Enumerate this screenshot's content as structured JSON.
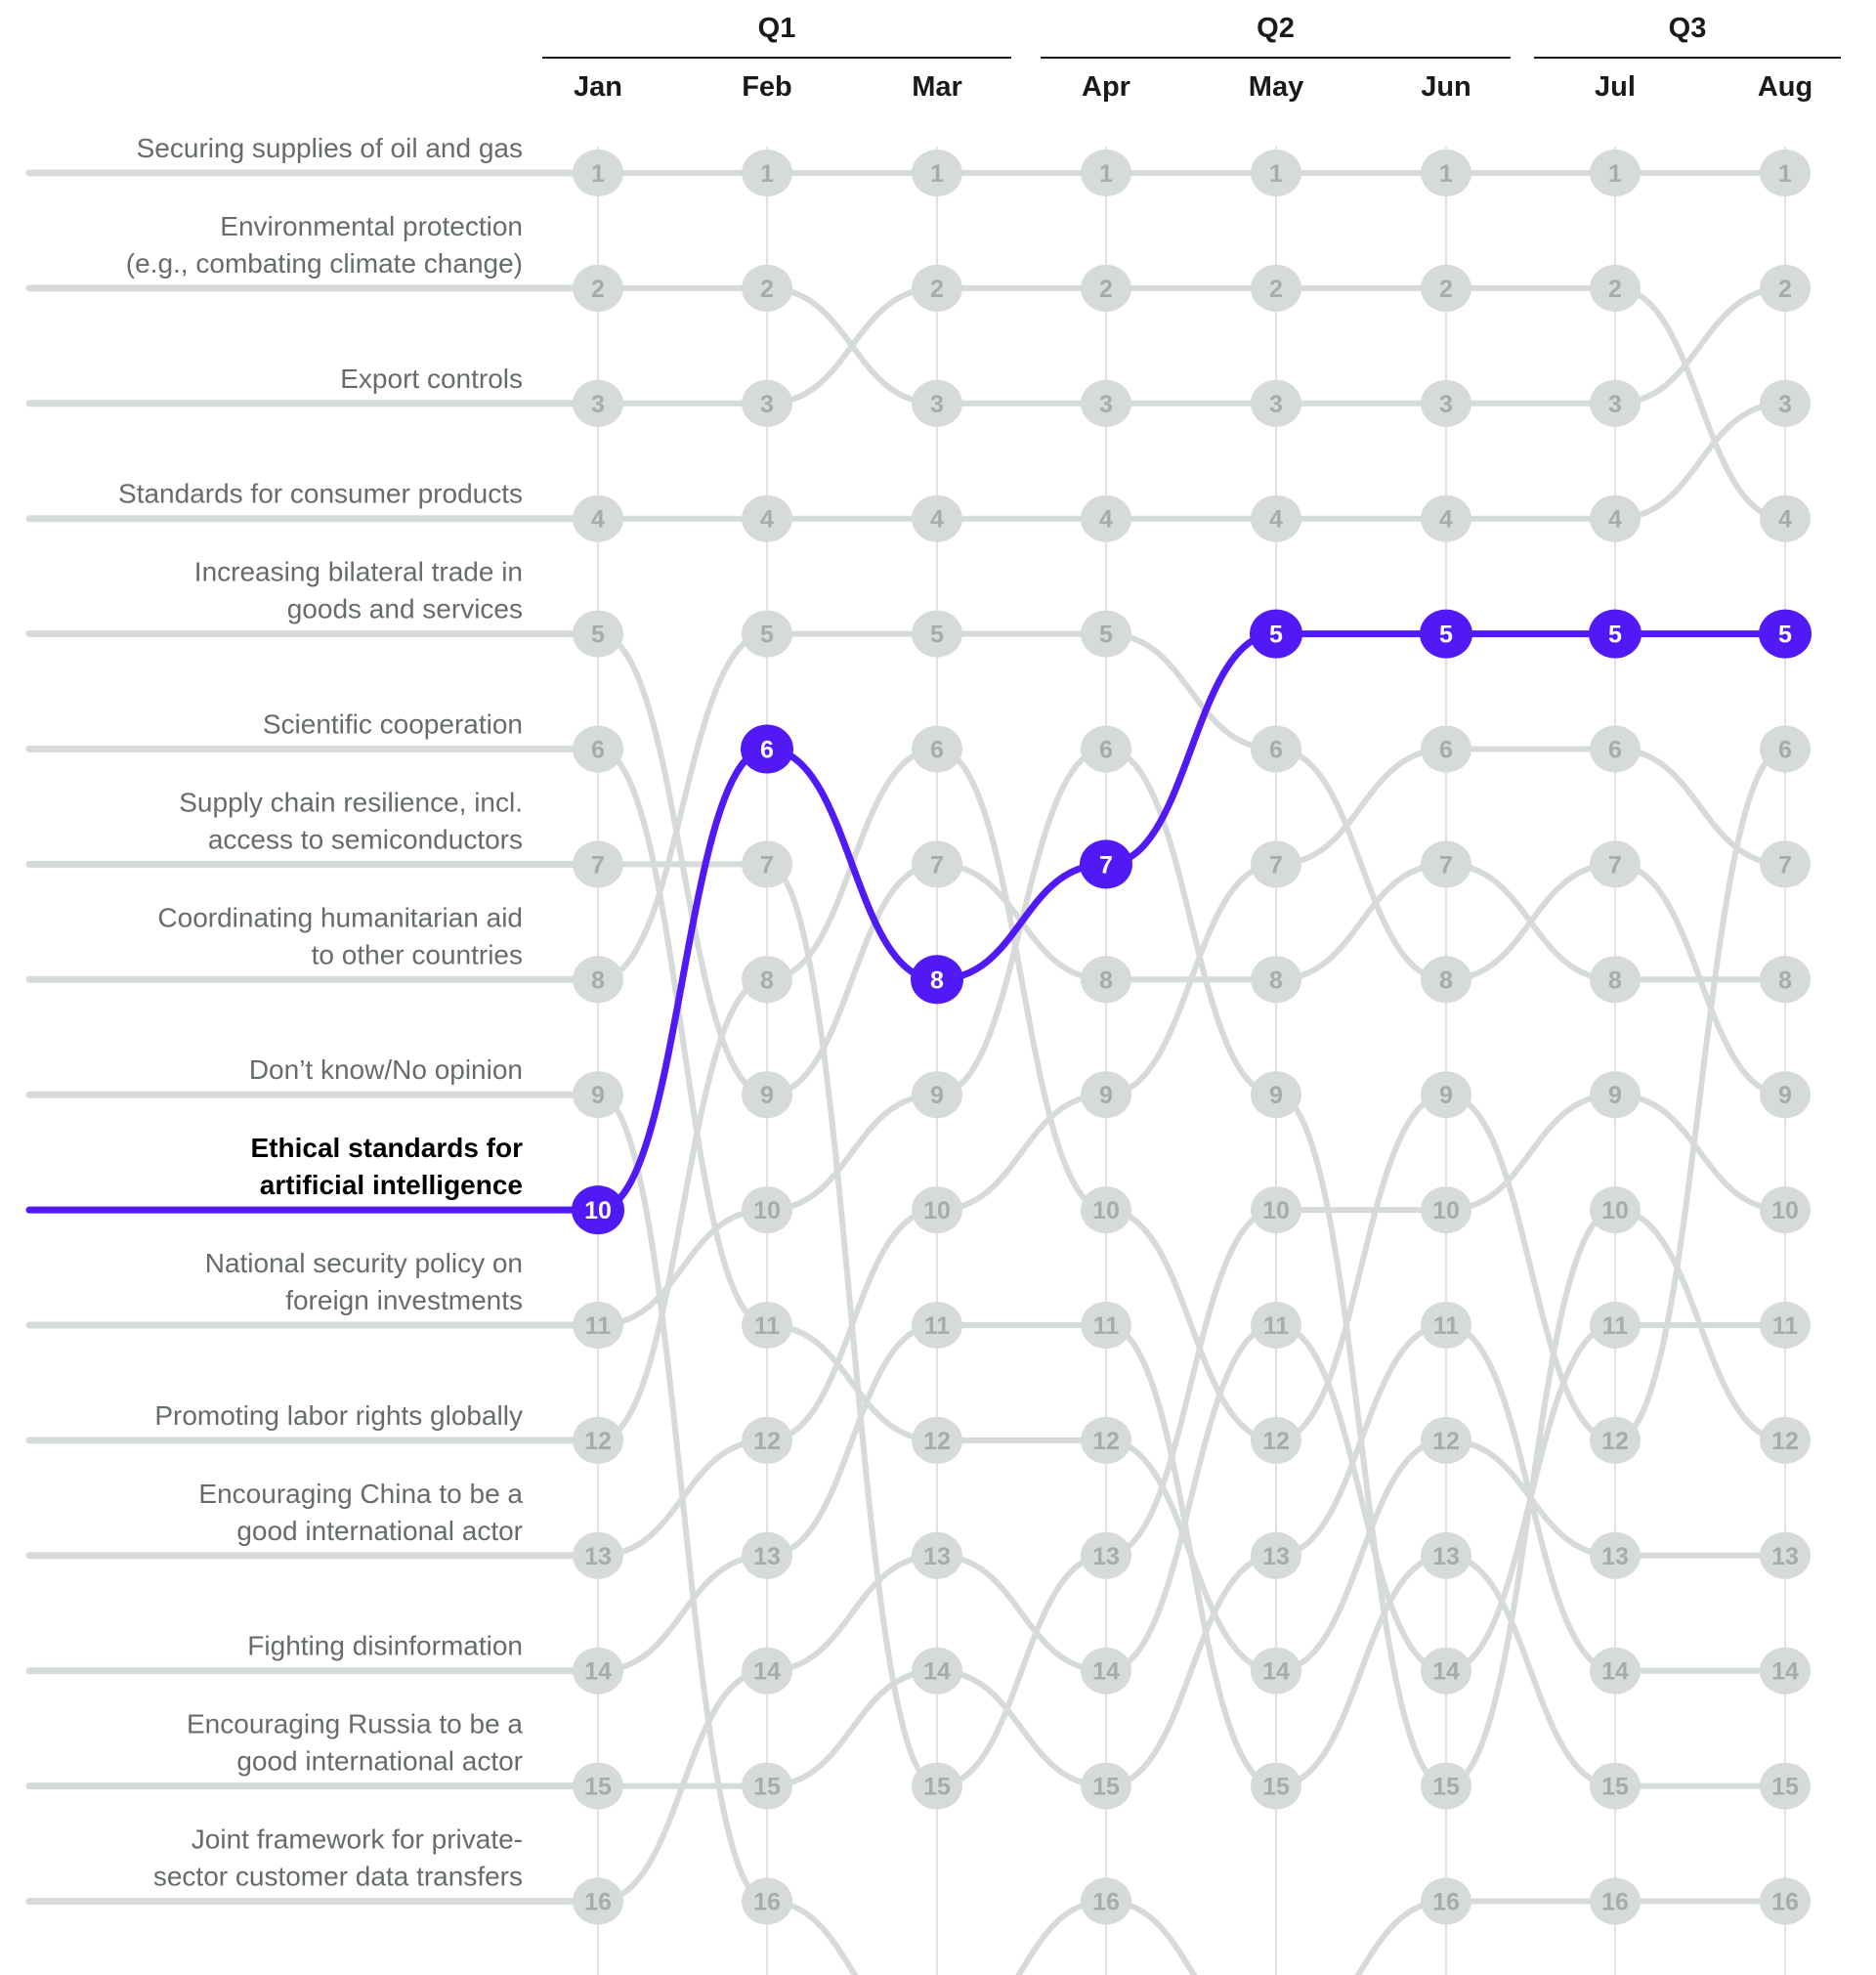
{
  "chart_data": {
    "type": "bump",
    "quarters": [
      {
        "label": "Q1",
        "months": [
          "Jan",
          "Feb",
          "Mar"
        ]
      },
      {
        "label": "Q2",
        "months": [
          "Apr",
          "May",
          "Jun"
        ]
      },
      {
        "label": "Q3",
        "months": [
          "Jul",
          "Aug"
        ]
      }
    ],
    "categories": [
      "Jan",
      "Feb",
      "Mar",
      "Apr",
      "May",
      "Jun",
      "Jul",
      "Aug"
    ],
    "y_axis": {
      "ranks_shown": [
        1,
        16
      ],
      "inverted": true
    },
    "grid": "vertical lines at each month",
    "colors": {
      "highlight": "#5119f6",
      "muted_line": "#d7dada",
      "muted_text": "#a6abab",
      "label_text": "#666c6c"
    },
    "highlighted_series": "Ethical standards for artificial intelligence",
    "series": [
      {
        "name": "Securing supplies of oil and gas",
        "label_lines": [
          "Securing supplies of oil and gas"
        ],
        "ranks": [
          1,
          1,
          1,
          1,
          1,
          1,
          1,
          1
        ]
      },
      {
        "name": "Environmental protection (e.g., combating climate change)",
        "label_lines": [
          "Environmental protection",
          "(e.g., combating  climate change)"
        ],
        "ranks": [
          2,
          2,
          3,
          3,
          3,
          3,
          3,
          2
        ]
      },
      {
        "name": "Export controls",
        "label_lines": [
          "Export controls"
        ],
        "ranks": [
          3,
          3,
          2,
          2,
          2,
          2,
          2,
          4
        ]
      },
      {
        "name": "Standards for consumer products",
        "label_lines": [
          "Standards for consumer products"
        ],
        "ranks": [
          4,
          4,
          4,
          4,
          4,
          4,
          4,
          3
        ]
      },
      {
        "name": "Increasing bilateral trade in goods and services",
        "label_lines": [
          "Increasing bilateral trade in",
          "goods and services"
        ],
        "ranks": [
          5,
          9,
          7,
          8,
          8,
          7,
          8,
          8
        ]
      },
      {
        "name": "Scientific cooperation",
        "label_lines": [
          "Scientific cooperation"
        ],
        "ranks": [
          6,
          11,
          12,
          12,
          14,
          12,
          13,
          13
        ]
      },
      {
        "name": "Supply chain resilience, incl. access to semiconductors",
        "label_lines": [
          "Supply chain resilience, incl.",
          "access to semiconductors"
        ],
        "ranks": [
          7,
          7,
          15,
          13,
          10,
          10,
          9,
          10
        ]
      },
      {
        "name": "Coordinating humanitarian aid to other countries",
        "label_lines": [
          "Coordinating humanitarian aid",
          "to other countries"
        ],
        "ranks": [
          8,
          5,
          5,
          5,
          6,
          8,
          7,
          9
        ]
      },
      {
        "name": "Don’t know/No opinion",
        "label_lines": [
          "Don’t know/No opinion"
        ],
        "ranks": [
          9,
          16,
          null,
          16,
          null,
          16,
          16,
          16
        ]
      },
      {
        "name": "Ethical standards for artificial intelligence",
        "label_lines": [
          "Ethical standards for",
          "artificial intelligence"
        ],
        "ranks": [
          10,
          6,
          8,
          7,
          5,
          5,
          5,
          5
        ],
        "highlight": true
      },
      {
        "name": "National security policy on foreign investments",
        "label_lines": [
          "National security policy on",
          "foreign investments"
        ],
        "ranks": [
          11,
          10,
          9,
          6,
          9,
          15,
          10,
          12
        ]
      },
      {
        "name": "Promoting labor rights globally",
        "label_lines": [
          "Promoting labor rights globally"
        ],
        "ranks": [
          12,
          8,
          6,
          10,
          12,
          9,
          12,
          6
        ]
      },
      {
        "name": "Encouraging China to be a good international actor",
        "label_lines": [
          "Encouraging China to be a",
          "good international actor"
        ],
        "ranks": [
          13,
          12,
          10,
          9,
          7,
          6,
          6,
          7
        ]
      },
      {
        "name": "Fighting disinformation",
        "label_lines": [
          "Fighting disinformation"
        ],
        "ranks": [
          14,
          13,
          11,
          11,
          15,
          13,
          15,
          15
        ]
      },
      {
        "name": "Encouraging Russia to be a good international actor",
        "label_lines": [
          "Encouraging Russia to be a",
          "good international actor"
        ],
        "ranks": [
          15,
          15,
          14,
          15,
          13,
          11,
          14,
          14
        ]
      },
      {
        "name": "Joint framework for private-sector customer data transfers",
        "label_lines": [
          "Joint framework for private-",
          "sector customer data transfers"
        ],
        "ranks": [
          16,
          14,
          13,
          14,
          11,
          14,
          11,
          11
        ]
      }
    ]
  }
}
